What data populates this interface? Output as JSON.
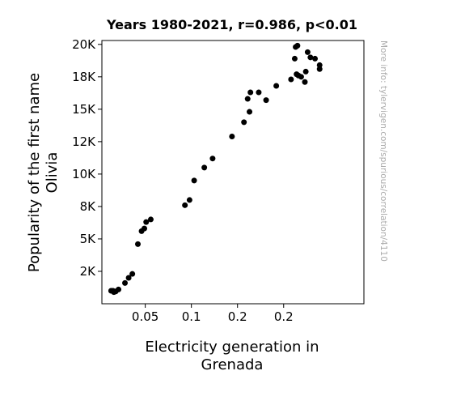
{
  "chart_data": {
    "type": "scatter",
    "title": "Years 1980-2021, r=0.986, p<0.01",
    "xlabel": [
      "Electricity generation in",
      "Grenada"
    ],
    "ylabel": [
      "Popularity of the first name",
      "Olivia"
    ],
    "watermark": "More info: tylervigen.com/spurious/correlation/4110",
    "xlim": [
      0.003,
      0.287
    ],
    "ylim": [
      0,
      20300
    ],
    "x_ticks": [
      {
        "value": 0.05,
        "label": "0.05"
      },
      {
        "value": 0.1,
        "label": "0.1"
      },
      {
        "value": 0.15,
        "label": "0.2"
      },
      {
        "value": 0.2,
        "label": "0.2"
      }
    ],
    "y_ticks": [
      {
        "value": 2500,
        "label": "2K"
      },
      {
        "value": 5000,
        "label": "5K"
      },
      {
        "value": 7500,
        "label": "8K"
      },
      {
        "value": 10000,
        "label": "10K"
      },
      {
        "value": 12500,
        "label": "12K"
      },
      {
        "value": 15000,
        "label": "15K"
      },
      {
        "value": 17500,
        "label": "18K"
      },
      {
        "value": 20000,
        "label": "20K"
      }
    ],
    "marker_color": "#000000",
    "grid": false,
    "points": [
      {
        "x": 0.013,
        "y": 1000
      },
      {
        "x": 0.015,
        "y": 1000
      },
      {
        "x": 0.016,
        "y": 900
      },
      {
        "x": 0.018,
        "y": 950
      },
      {
        "x": 0.021,
        "y": 1100
      },
      {
        "x": 0.028,
        "y": 1600
      },
      {
        "x": 0.032,
        "y": 2000
      },
      {
        "x": 0.036,
        "y": 2300
      },
      {
        "x": 0.042,
        "y": 4600
      },
      {
        "x": 0.046,
        "y": 5600
      },
      {
        "x": 0.049,
        "y": 5800
      },
      {
        "x": 0.051,
        "y": 6300
      },
      {
        "x": 0.056,
        "y": 6500
      },
      {
        "x": 0.093,
        "y": 7600
      },
      {
        "x": 0.098,
        "y": 8000
      },
      {
        "x": 0.103,
        "y": 9500
      },
      {
        "x": 0.114,
        "y": 10500
      },
      {
        "x": 0.123,
        "y": 11200
      },
      {
        "x": 0.144,
        "y": 12900
      },
      {
        "x": 0.157,
        "y": 14000
      },
      {
        "x": 0.161,
        "y": 15800
      },
      {
        "x": 0.163,
        "y": 14800
      },
      {
        "x": 0.164,
        "y": 16300
      },
      {
        "x": 0.173,
        "y": 16300
      },
      {
        "x": 0.181,
        "y": 15700
      },
      {
        "x": 0.192,
        "y": 16800
      },
      {
        "x": 0.208,
        "y": 17300
      },
      {
        "x": 0.212,
        "y": 18900
      },
      {
        "x": 0.213,
        "y": 19800
      },
      {
        "x": 0.215,
        "y": 19900
      },
      {
        "x": 0.214,
        "y": 17700
      },
      {
        "x": 0.216,
        "y": 17600
      },
      {
        "x": 0.219,
        "y": 17500
      },
      {
        "x": 0.223,
        "y": 17100
      },
      {
        "x": 0.224,
        "y": 17900
      },
      {
        "x": 0.226,
        "y": 19400
      },
      {
        "x": 0.229,
        "y": 19000
      },
      {
        "x": 0.234,
        "y": 18900
      },
      {
        "x": 0.239,
        "y": 18100
      },
      {
        "x": 0.239,
        "y": 18400
      }
    ]
  }
}
